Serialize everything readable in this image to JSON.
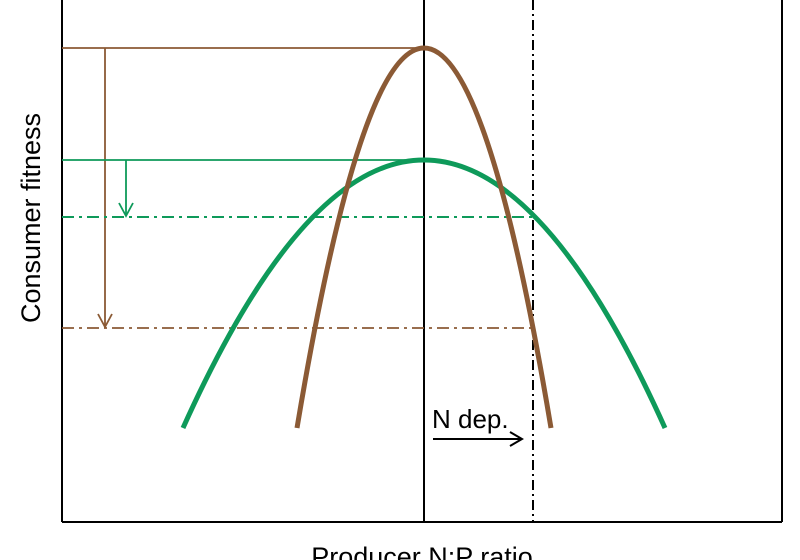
{
  "axes": {
    "y_label": "Consumer fitness",
    "x_label": "Producer N:P ratio"
  },
  "annotation": {
    "arrow_label": "N dep."
  },
  "colors": {
    "brown_curve": "#8B5A35",
    "green_curve": "#0E9A5A",
    "axis": "#000000"
  }
}
